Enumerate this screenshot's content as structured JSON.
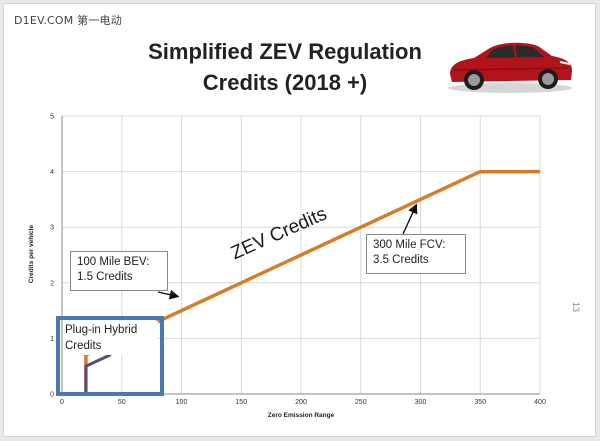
{
  "watermark": "D1EV.COM 第一电动",
  "title_line1": "Simplified ZEV Regulation",
  "title_line2": "Credits (2018 +)",
  "page_number": "13",
  "callouts": {
    "bev": [
      "100 Mile BEV:",
      "1.5 Credits"
    ],
    "fcv": [
      "300 Mile FCV:",
      "3.5 Credits"
    ],
    "phev": [
      "Plug-in Hybrid",
      "Credits"
    ]
  },
  "zev_label": "ZEV Credits",
  "colors": {
    "zev_line": "#d57d2a",
    "phev_line": "#5b4a7a",
    "phev_box": "#4a78b0",
    "grid": "#d9d9d9",
    "car_body": "#b3141c"
  },
  "icons": {
    "car": "red-sedan-photo"
  },
  "chart_data": {
    "type": "line",
    "title": "Simplified ZEV Regulation Credits (2018 +)",
    "xlabel": "Zero Emission Range",
    "ylabel": "Credits per vehicle",
    "xlim": [
      0,
      400
    ],
    "ylim": [
      0,
      5
    ],
    "xticks": [
      0,
      50,
      100,
      150,
      200,
      250,
      300,
      350,
      400
    ],
    "yticks": [
      0,
      1,
      2,
      3,
      4,
      5
    ],
    "grid": true,
    "series": [
      {
        "x": [
          20,
          20,
          350,
          400
        ],
        "y": [
          0,
          0.7,
          4,
          4
        ]
      },
      {
        "x": [
          20,
          20,
          40,
          40
        ],
        "y": [
          0,
          0.5,
          0.7,
          0.85
        ]
      }
    ],
    "annotations": [
      {
        "text": "100 Mile BEV: 1.5 Credits",
        "x": 100,
        "y": 1.5
      },
      {
        "text": "300 Mile FCV: 3.5 Credits",
        "x": 300,
        "y": 3.5
      },
      {
        "text": "ZEV Credits"
      },
      {
        "text": "Plug-in Hybrid Credits"
      }
    ]
  }
}
